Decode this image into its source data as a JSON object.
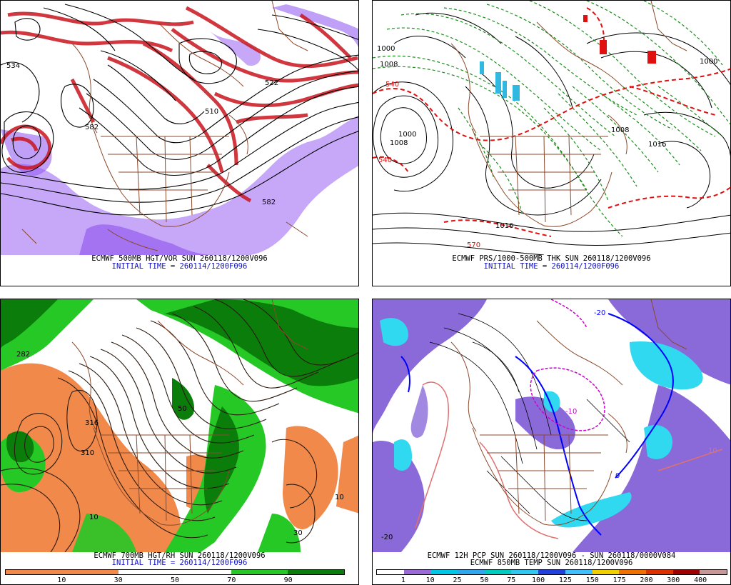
{
  "panels": [
    {
      "id": "tl",
      "caption1": "ECMWF 500MB HGT/VOR SUN 260118/1200V096",
      "caption2": "INITIAL TIME = 260114/1200F096",
      "contour_labels": [
        "534",
        "582",
        "510",
        "522",
        "582"
      ],
      "colors": {
        "vort_hi": "#c8141e",
        "vort_lo": "#8a4cf0",
        "contour": "#000000",
        "map": "#8b4a2b"
      }
    },
    {
      "id": "tr",
      "caption1": "ECMWF PRS/1000-500MB THK SUN 260118/1200V096",
      "caption2": "INITIAL TIME = 260114/1200F096",
      "contour_labels": [
        "1000",
        "1008",
        "540",
        "1008",
        "540",
        "1000",
        "1008",
        "1016",
        "570",
        "1016",
        "1000"
      ],
      "colors": {
        "isobar": "#000000",
        "thick_lo": "#1a8c1a",
        "thick_hi": "#e01010",
        "map": "#8b4a2b",
        "snow": "#30b8e0"
      }
    },
    {
      "id": "bl",
      "caption1": "ECMWF 700MB HGT/RH SUN 260118/1200V096",
      "caption2": "INITIAL TIME = 260114/1200F096",
      "contour_labels": [
        "282",
        "316",
        "10",
        "10",
        "310",
        "50",
        "30"
      ],
      "colorbar": {
        "colors": [
          "#f0894a",
          "#f0894a",
          "#f0894a",
          "#f0894a",
          "#ffffff",
          "#ffffff",
          "#ffffff",
          "#ffffff",
          "#26c826",
          "#26c826",
          "#0b7d0b",
          "#0b7d0b"
        ],
        "labels": [
          "10",
          "30",
          "50",
          "70",
          "90"
        ]
      },
      "colors": {
        "dry": "#f0894a",
        "moist": "#26c826",
        "wet": "#0b7d0b",
        "map": "#8b4a2b"
      }
    },
    {
      "id": "br",
      "caption1": "ECMWF 12H PCP SUN 260118/1200V096 - SUN 260118/0000V084",
      "caption2": "ECMWF 850MB TEMP SUN 260118/1200V096",
      "contour_labels": [
        "-20",
        "-20",
        "-10",
        "10",
        "0"
      ],
      "colorbar": {
        "colors": [
          "#ffffff",
          "#9b6ad8",
          "#00c8e8",
          "#30a8f0",
          "#00ccc0",
          "#30c8f0",
          "#2040e0",
          "#40c0ff",
          "#f0d000",
          "#f07000",
          "#e03000",
          "#a00000",
          "#c89898"
        ],
        "labels": [
          "1",
          "10",
          "25",
          "50",
          "75",
          "100",
          "125",
          "150",
          "175",
          "200",
          "300",
          "400"
        ]
      },
      "colors": {
        "precip": "#8a6ad8",
        "snow": "#30d8f0",
        "t0": "#0000ff",
        "tneg": "#d000d0",
        "tpos": "#e07070",
        "map": "#8b4a2b"
      }
    }
  ]
}
